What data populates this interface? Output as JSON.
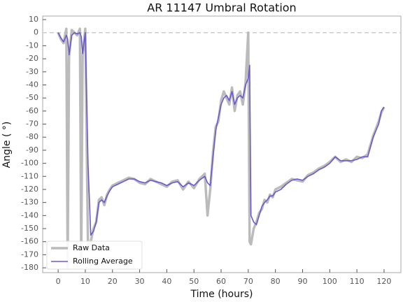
{
  "chart_data": {
    "type": "line",
    "title": "AR 11147 Umbral Rotation",
    "x_label": "Time (hours)",
    "y_label": "Angle ( °)",
    "x": [
      0,
      1,
      2,
      3,
      3.5,
      4,
      5,
      6,
      7,
      8,
      8.5,
      9,
      10,
      11,
      12,
      13,
      14,
      15,
      16,
      17,
      18,
      19,
      20,
      22,
      24,
      26,
      28,
      30,
      32,
      34,
      36,
      38,
      40,
      42,
      44,
      46,
      48,
      50,
      52,
      54,
      55,
      56,
      57,
      58,
      59,
      60,
      61,
      62,
      63,
      64,
      65,
      66,
      67,
      68,
      69,
      70,
      70.5,
      71,
      72,
      73,
      74,
      75,
      76,
      77,
      78,
      79,
      80,
      82,
      84,
      86,
      88,
      90,
      92,
      94,
      96,
      98,
      100,
      102,
      104,
      106,
      108,
      110,
      112,
      114,
      116,
      118,
      119,
      120
    ],
    "series": [
      {
        "name": "Raw Data",
        "color": "#bbbbbb",
        "values": [
          0,
          -5,
          -8,
          3,
          -180,
          -18,
          2,
          0,
          -2,
          3,
          -175,
          -17,
          3,
          -165,
          -160,
          -150,
          -145,
          -128,
          -126,
          -132,
          -124,
          -120,
          -117,
          -115,
          -113,
          -111,
          -112,
          -115,
          -116,
          -112,
          -114,
          -116,
          -118,
          -114,
          -113,
          -120,
          -114,
          -119,
          -112,
          -108,
          -140,
          -120,
          -92,
          -72,
          -68,
          -52,
          -45,
          -50,
          -55,
          -42,
          -60,
          -48,
          -45,
          -55,
          -38,
          0,
          -160,
          -162,
          -150,
          -145,
          -138,
          -135,
          -128,
          -130,
          -124,
          -126,
          -120,
          -118,
          -115,
          -112,
          -113,
          -114,
          -109,
          -107,
          -104,
          -102,
          -99,
          -95,
          -99,
          -97,
          -99,
          -95,
          -96,
          -93,
          -79,
          -68,
          -61,
          -57
        ]
      },
      {
        "name": "Rolling Average",
        "color": "#6a5acd",
        "values": [
          0,
          -4,
          -7,
          -2,
          -5,
          -17,
          -2,
          0,
          -1,
          0,
          -3,
          -16,
          0,
          -100,
          -155,
          -152,
          -145,
          -130,
          -128,
          -130,
          -125,
          -121,
          -118,
          -116,
          -114,
          -112,
          -112,
          -114,
          -115,
          -113,
          -114,
          -115,
          -117,
          -115,
          -114,
          -118,
          -115,
          -117,
          -113,
          -110,
          -115,
          -117,
          -95,
          -75,
          -65,
          -55,
          -50,
          -48,
          -52,
          -45,
          -55,
          -50,
          -48,
          -50,
          -40,
          -35,
          -25,
          -140,
          -145,
          -147,
          -140,
          -133,
          -130,
          -128,
          -125,
          -125,
          -122,
          -120,
          -116,
          -113,
          -112,
          -113,
          -110,
          -108,
          -105,
          -103,
          -100,
          -95,
          -98,
          -98,
          -98,
          -97,
          -95,
          -95,
          -80,
          -70,
          -60,
          -57
        ]
      }
    ],
    "xlim": [
      -5.7,
      126.2
    ],
    "ylim": [
      -183.7,
      12.7
    ],
    "xticks": [
      0,
      10,
      20,
      30,
      40,
      50,
      60,
      70,
      80,
      90,
      100,
      110,
      120
    ],
    "yticks": [
      -180,
      -170,
      -160,
      -150,
      -140,
      -130,
      -120,
      -110,
      -100,
      -90,
      -80,
      -70,
      -60,
      -50,
      -40,
      -30,
      -20,
      -10,
      0,
      10
    ],
    "hline": 0,
    "legend": "lower left"
  }
}
